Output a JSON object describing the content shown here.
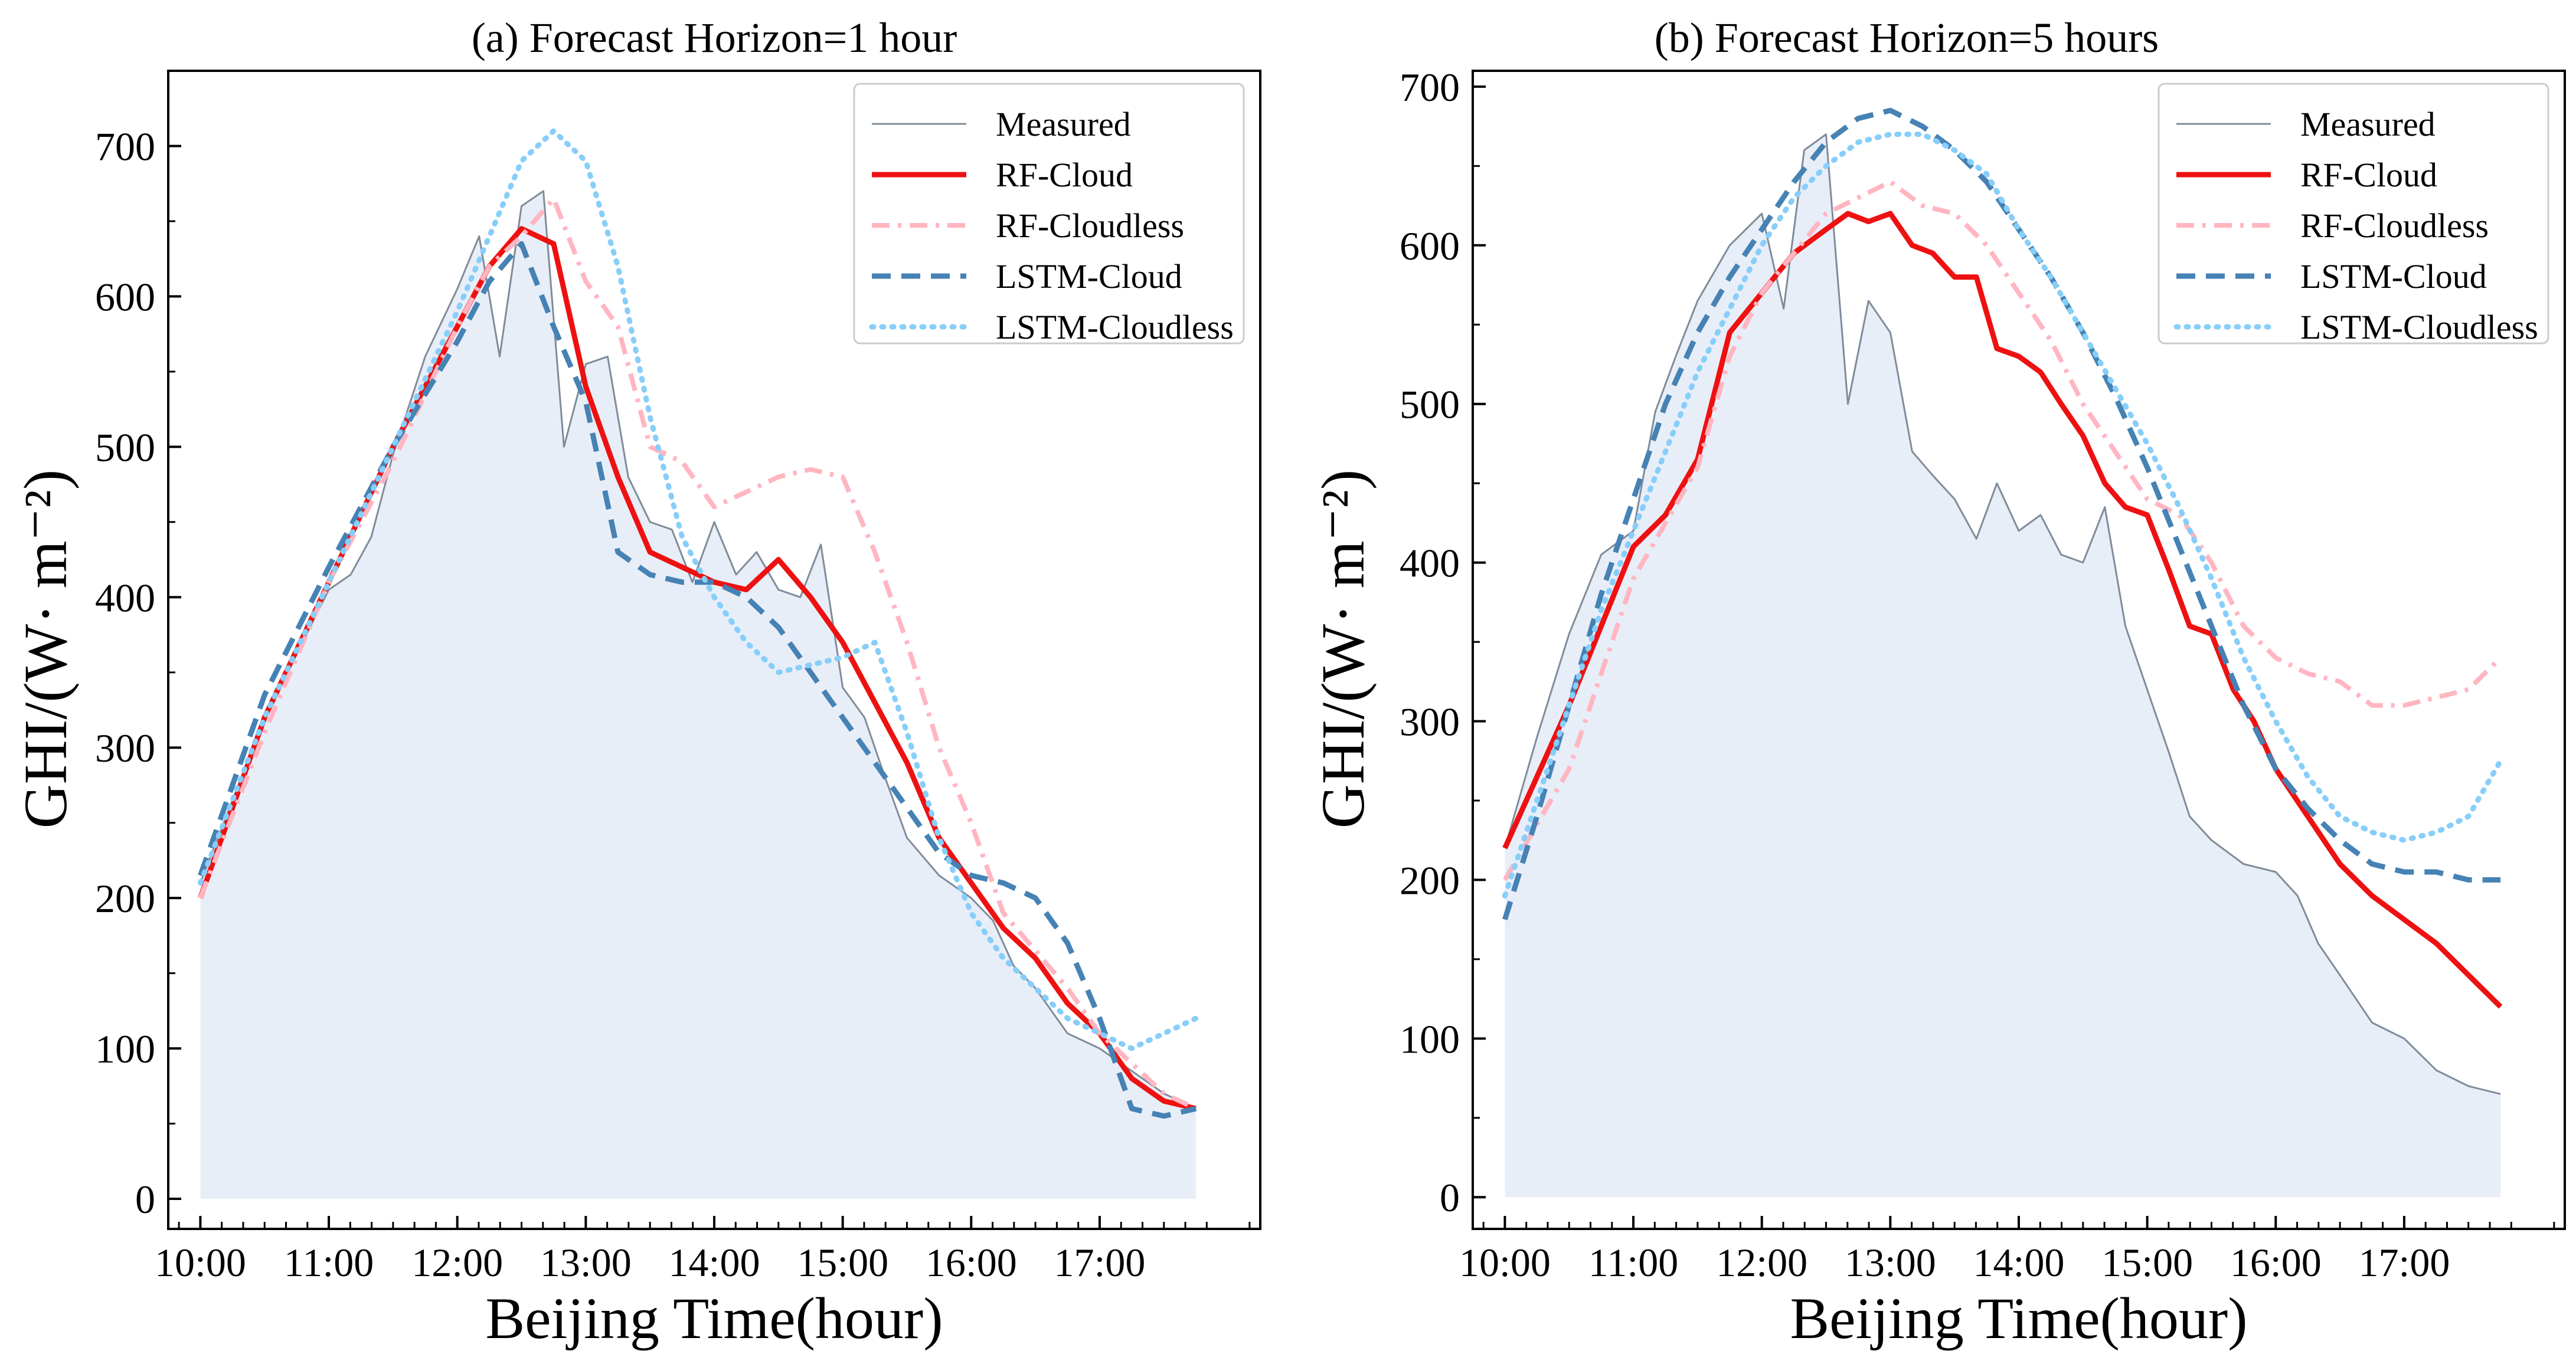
{
  "colors": {
    "measured": "#7f8c99",
    "fill": "#e8eef8",
    "rf_cloud": "#ee1111",
    "rf_cloudless": "#ffb6c1",
    "lstm_cloud": "#4682b4",
    "lstm_cloudless": "#87cefa"
  },
  "chart_data": [
    {
      "type": "line",
      "title": "(a) Forecast Horizon=1 hour",
      "xlabel": "Beijing Time(hour)",
      "ylabel": "GHI/(W· m⁻²)",
      "xlim": [
        9.75,
        18.25
      ],
      "ylim": [
        -20,
        750
      ],
      "xticks": [
        10,
        11,
        12,
        13,
        14,
        15,
        16,
        17
      ],
      "xtick_labels": [
        "10:00",
        "11:00",
        "12:00",
        "13:00",
        "14:00",
        "15:00",
        "16:00",
        "17:00"
      ],
      "yticks": [
        0,
        100,
        200,
        300,
        400,
        500,
        600,
        700
      ],
      "legend_position": "top-right",
      "series": [
        {
          "name": "Measured",
          "key": "measured",
          "dash": "",
          "width": 3,
          "x": [
            10.0,
            10.5,
            11.0,
            11.17,
            11.33,
            11.5,
            11.75,
            12.0,
            12.17,
            12.33,
            12.5,
            12.67,
            12.83,
            13.0,
            13.17,
            13.33,
            13.5,
            13.67,
            13.83,
            14.0,
            14.17,
            14.33,
            14.5,
            14.67,
            14.83,
            15.0,
            15.17,
            15.33,
            15.5,
            15.75,
            16.0,
            16.17,
            16.33,
            16.5,
            16.75,
            17.0,
            17.25,
            17.5,
            17.75
          ],
          "y": [
            210,
            320,
            405,
            415,
            440,
            495,
            560,
            605,
            640,
            560,
            660,
            670,
            500,
            555,
            560,
            480,
            450,
            445,
            410,
            450,
            415,
            430,
            405,
            400,
            435,
            340,
            320,
            280,
            240,
            215,
            200,
            185,
            155,
            140,
            110,
            100,
            85,
            70,
            60
          ]
        },
        {
          "name": "RF-Cloud",
          "key": "rf_cloud",
          "dash": "",
          "width": 9,
          "x": [
            10.0,
            10.5,
            11.0,
            11.5,
            12.0,
            12.25,
            12.5,
            12.75,
            13.0,
            13.25,
            13.5,
            13.75,
            14.0,
            14.25,
            14.5,
            14.75,
            15.0,
            15.25,
            15.5,
            15.75,
            16.0,
            16.25,
            16.5,
            16.75,
            17.0,
            17.25,
            17.5,
            17.75
          ],
          "y": [
            200,
            320,
            410,
            500,
            580,
            620,
            645,
            635,
            540,
            480,
            430,
            420,
            410,
            405,
            425,
            400,
            370,
            330,
            290,
            240,
            210,
            180,
            160,
            130,
            110,
            80,
            65,
            60
          ]
        },
        {
          "name": "RF-Cloudless",
          "key": "rf_cloudless",
          "dash": "30,14,6,14",
          "width": 8,
          "x": [
            10.0,
            10.5,
            11.0,
            11.5,
            12.0,
            12.25,
            12.5,
            12.75,
            13.0,
            13.25,
            13.5,
            13.75,
            14.0,
            14.25,
            14.5,
            14.75,
            15.0,
            15.25,
            15.5,
            15.75,
            16.0,
            16.25,
            16.5,
            16.75,
            17.0,
            17.25,
            17.5,
            17.75
          ],
          "y": [
            200,
            310,
            410,
            490,
            580,
            620,
            640,
            665,
            610,
            580,
            500,
            490,
            460,
            470,
            480,
            485,
            480,
            430,
            370,
            300,
            250,
            190,
            165,
            140,
            110,
            90,
            70,
            60
          ]
        },
        {
          "name": "LSTM-Cloud",
          "key": "lstm_cloud",
          "dash": "32,18",
          "width": 9,
          "x": [
            10.0,
            10.5,
            11.0,
            11.5,
            12.0,
            12.25,
            12.5,
            12.75,
            13.0,
            13.25,
            13.5,
            13.75,
            14.0,
            14.25,
            14.5,
            14.75,
            15.0,
            15.25,
            15.5,
            15.75,
            16.0,
            16.25,
            16.5,
            16.75,
            17.0,
            17.25,
            17.5,
            17.75
          ],
          "y": [
            215,
            335,
            420,
            500,
            570,
            610,
            635,
            580,
            530,
            430,
            415,
            410,
            410,
            400,
            380,
            350,
            320,
            290,
            260,
            230,
            215,
            210,
            200,
            170,
            120,
            60,
            55,
            60
          ]
        },
        {
          "name": "LSTM-Cloudless",
          "key": "lstm_cloudless",
          "dash": "3,14",
          "width": 9,
          "x": [
            10.0,
            10.5,
            11.0,
            11.5,
            12.0,
            12.25,
            12.5,
            12.75,
            13.0,
            13.25,
            13.5,
            13.75,
            14.0,
            14.25,
            14.5,
            14.75,
            15.0,
            15.25,
            15.5,
            15.75,
            16.0,
            16.25,
            16.5,
            16.75,
            17.0,
            17.25,
            17.5,
            17.75
          ],
          "y": [
            210,
            320,
            410,
            500,
            590,
            640,
            690,
            710,
            690,
            620,
            520,
            440,
            400,
            370,
            350,
            355,
            360,
            370,
            310,
            240,
            190,
            160,
            140,
            120,
            110,
            100,
            110,
            120
          ]
        }
      ]
    },
    {
      "type": "line",
      "title": "(b) Forecast Horizon=5 hours",
      "xlabel": "Beijing Time(hour)",
      "ylabel": "GHI/(W· m⁻²)",
      "xlim": [
        9.75,
        18.25
      ],
      "ylim": [
        -20,
        710
      ],
      "xticks": [
        10,
        11,
        12,
        13,
        14,
        15,
        16,
        17
      ],
      "xtick_labels": [
        "10:00",
        "11:00",
        "12:00",
        "13:00",
        "14:00",
        "15:00",
        "16:00",
        "17:00"
      ],
      "yticks": [
        0,
        100,
        200,
        300,
        400,
        500,
        600,
        700
      ],
      "legend_position": "top-right",
      "series": [
        {
          "name": "Measured",
          "key": "measured",
          "dash": "",
          "width": 3,
          "x": [
            10.0,
            10.25,
            10.5,
            10.75,
            11.0,
            11.17,
            11.33,
            11.5,
            11.75,
            12.0,
            12.17,
            12.33,
            12.5,
            12.67,
            12.83,
            13.0,
            13.17,
            13.33,
            13.5,
            13.67,
            13.83,
            14.0,
            14.17,
            14.33,
            14.5,
            14.67,
            14.83,
            15.0,
            15.17,
            15.33,
            15.5,
            15.75,
            16.0,
            16.17,
            16.33,
            16.5,
            16.75,
            17.0,
            17.25,
            17.5,
            17.75
          ],
          "y": [
            220,
            290,
            355,
            405,
            420,
            495,
            530,
            565,
            600,
            620,
            560,
            660,
            670,
            500,
            565,
            545,
            470,
            455,
            440,
            415,
            450,
            420,
            430,
            405,
            400,
            435,
            360,
            320,
            280,
            240,
            225,
            210,
            205,
            190,
            160,
            140,
            110,
            100,
            80,
            70,
            65
          ]
        },
        {
          "name": "RF-Cloud",
          "key": "rf_cloud",
          "dash": "",
          "width": 9,
          "x": [
            10.0,
            10.25,
            10.5,
            10.75,
            11.0,
            11.25,
            11.5,
            11.75,
            12.0,
            12.25,
            12.5,
            12.67,
            12.83,
            13.0,
            13.17,
            13.33,
            13.5,
            13.67,
            13.83,
            14.0,
            14.17,
            14.33,
            14.5,
            14.67,
            14.83,
            15.0,
            15.17,
            15.33,
            15.5,
            15.67,
            15.83,
            16.0,
            16.25,
            16.5,
            16.75,
            17.0,
            17.25,
            17.5,
            17.75
          ],
          "y": [
            220,
            265,
            310,
            360,
            410,
            430,
            465,
            545,
            570,
            595,
            610,
            620,
            615,
            620,
            600,
            595,
            580,
            580,
            535,
            530,
            520,
            500,
            480,
            450,
            435,
            430,
            395,
            360,
            355,
            320,
            300,
            270,
            240,
            210,
            190,
            175,
            160,
            140,
            120
          ]
        },
        {
          "name": "RF-Cloudless",
          "key": "rf_cloudless",
          "dash": "30,14,6,14",
          "width": 8,
          "x": [
            10.0,
            10.5,
            11.0,
            11.25,
            11.5,
            11.75,
            12.0,
            12.25,
            12.5,
            12.75,
            13.0,
            13.25,
            13.5,
            13.75,
            14.0,
            14.25,
            14.5,
            14.75,
            15.0,
            15.25,
            15.5,
            15.75,
            16.0,
            16.25,
            16.5,
            16.75,
            17.0,
            17.25,
            17.5,
            17.75
          ],
          "y": [
            200,
            270,
            390,
            425,
            460,
            530,
            570,
            595,
            620,
            630,
            640,
            625,
            620,
            600,
            570,
            540,
            500,
            470,
            440,
            430,
            400,
            360,
            340,
            330,
            325,
            310,
            310,
            315,
            320,
            340
          ]
        },
        {
          "name": "LSTM-Cloud",
          "key": "lstm_cloud",
          "dash": "32,18",
          "width": 9,
          "x": [
            10.0,
            10.25,
            10.5,
            10.75,
            11.0,
            11.25,
            11.5,
            11.75,
            12.0,
            12.25,
            12.5,
            12.75,
            13.0,
            13.25,
            13.5,
            13.75,
            14.0,
            14.25,
            14.5,
            14.75,
            15.0,
            15.25,
            15.5,
            15.75,
            16.0,
            16.25,
            16.5,
            16.75,
            17.0,
            17.25,
            17.5,
            17.75
          ],
          "y": [
            175,
            240,
            310,
            380,
            440,
            500,
            545,
            580,
            610,
            640,
            665,
            680,
            685,
            675,
            660,
            640,
            610,
            580,
            545,
            505,
            460,
            410,
            360,
            310,
            270,
            245,
            225,
            210,
            205,
            205,
            200,
            200
          ]
        },
        {
          "name": "LSTM-Cloudless",
          "key": "lstm_cloudless",
          "dash": "3,14",
          "width": 9,
          "x": [
            10.0,
            10.25,
            10.5,
            10.75,
            11.0,
            11.25,
            11.5,
            11.75,
            12.0,
            12.25,
            12.5,
            12.75,
            13.0,
            13.25,
            13.5,
            13.75,
            14.0,
            14.25,
            14.5,
            14.75,
            15.0,
            15.25,
            15.5,
            15.75,
            16.0,
            16.25,
            16.5,
            16.75,
            17.0,
            17.25,
            17.5,
            17.75
          ],
          "y": [
            190,
            250,
            310,
            370,
            420,
            470,
            520,
            560,
            600,
            630,
            650,
            665,
            670,
            670,
            660,
            645,
            610,
            580,
            545,
            510,
            475,
            435,
            390,
            340,
            300,
            265,
            240,
            230,
            225,
            230,
            240,
            275
          ]
        }
      ]
    }
  ]
}
